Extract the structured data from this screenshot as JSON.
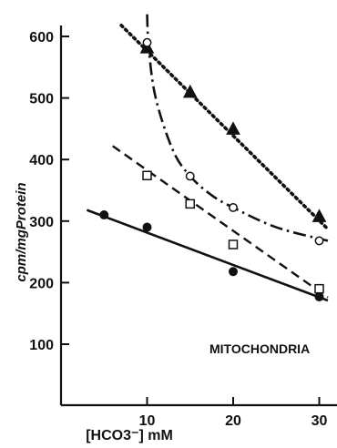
{
  "chart_data": {
    "type": "line",
    "ylabel": "cpm/mgProtein",
    "xlabel": "[HCO3⁻] mM",
    "annotation": "MITOCHONDRIA",
    "x_ticks": [
      10,
      20,
      30
    ],
    "y_ticks": [
      100,
      200,
      300,
      400,
      500,
      600
    ],
    "xlim": [
      0,
      31
    ],
    "ylim": [
      30,
      640
    ],
    "grid": false,
    "legend": "none",
    "series": [
      {
        "marker": "filled-triangle",
        "line_style": "dotted",
        "points": [
          [
            10,
            582
          ],
          [
            15,
            510
          ],
          [
            20,
            450
          ],
          [
            30,
            308
          ]
        ],
        "fit_line": [
          [
            7,
            618
          ],
          [
            31,
            287
          ]
        ]
      },
      {
        "marker": "open-circle",
        "line_style": "dash-dot",
        "points": [
          [
            10,
            590
          ],
          [
            15,
            373
          ],
          [
            20,
            322
          ],
          [
            30,
            268
          ]
        ],
        "fit_curve": [
          [
            10,
            636
          ],
          [
            10.2,
            580
          ],
          [
            11,
            500
          ],
          [
            13,
            415
          ],
          [
            15,
            373
          ],
          [
            17.5,
            342
          ],
          [
            20,
            322
          ],
          [
            25,
            290
          ],
          [
            31,
            268
          ]
        ]
      },
      {
        "marker": "open-square",
        "line_style": "dashed",
        "points": [
          [
            10,
            374
          ],
          [
            15,
            328
          ],
          [
            20,
            262
          ],
          [
            30,
            190
          ]
        ],
        "fit_line": [
          [
            6,
            422
          ],
          [
            31,
            176
          ]
        ]
      },
      {
        "marker": "filled-circle",
        "line_style": "solid",
        "points": [
          [
            5,
            310
          ],
          [
            10,
            290
          ],
          [
            20,
            218
          ],
          [
            30,
            177
          ]
        ],
        "fit_line": [
          [
            3,
            318
          ],
          [
            31,
            171
          ]
        ]
      }
    ]
  }
}
